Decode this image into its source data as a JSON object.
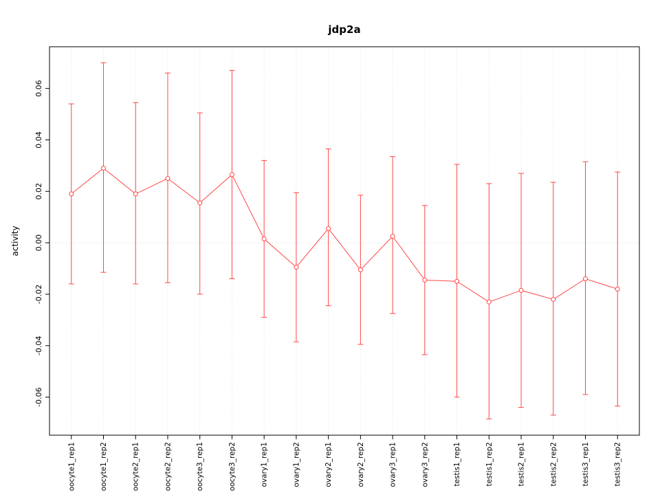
{
  "title": "jdp2a",
  "chart_data": {
    "type": "line",
    "title": "jdp2a",
    "xlabel": "",
    "ylabel": "activity",
    "legend": "none",
    "categories": [
      "oocyte1_rep1",
      "oocyte1_rep2",
      "oocyte2_rep1",
      "oocyte2_rep2",
      "oocyte3_rep1",
      "oocyte3_rep2",
      "ovary1_rep1",
      "ovary1_rep2",
      "ovary2_rep1",
      "ovary2_rep2",
      "ovary3_rep1",
      "ovary3_rep2",
      "testis1_rep1",
      "testis1_rep2",
      "testis2_rep1",
      "testis2_rep2",
      "testis3_rep1",
      "testis3_rep2"
    ],
    "series": [
      {
        "name": "activity",
        "marker": "open-circle",
        "values": [
          0.019,
          0.029,
          0.019,
          0.025,
          0.0155,
          0.0265,
          0.0015,
          -0.0095,
          0.0055,
          -0.0105,
          0.0025,
          -0.0145,
          -0.015,
          -0.023,
          -0.0185,
          -0.022,
          -0.014,
          -0.018
        ],
        "error_upper": [
          0.054,
          0.07,
          0.0545,
          0.066,
          0.0505,
          0.067,
          0.032,
          0.0195,
          0.0365,
          0.0185,
          0.0335,
          0.0145,
          0.0305,
          0.023,
          0.027,
          0.0235,
          0.0315,
          0.0275
        ],
        "error_lower": [
          -0.016,
          -0.0115,
          -0.016,
          -0.0155,
          -0.02,
          -0.014,
          -0.029,
          -0.0385,
          -0.0245,
          -0.0395,
          -0.0275,
          -0.0435,
          -0.06,
          -0.0685,
          -0.064,
          -0.067,
          -0.059,
          -0.0635
        ]
      }
    ],
    "yticks": [
      {
        "value": -0.06,
        "label": "-0.06"
      },
      {
        "value": -0.04,
        "label": "-0.04"
      },
      {
        "value": -0.02,
        "label": "-0.02"
      },
      {
        "value": 0.0,
        "label": "0.00"
      },
      {
        "value": 0.02,
        "label": "0.02"
      },
      {
        "value": 0.04,
        "label": "0.04"
      },
      {
        "value": 0.06,
        "label": "0.06"
      }
    ],
    "ylim": [
      -0.0748,
      0.0762
    ],
    "grid": {
      "vertical_dotted_at_each_category": true,
      "horizontal_dotted_zero_line": true
    },
    "colors": {
      "series": "#ff4545",
      "grid": "#dcdcdc",
      "zero_line": "#d8d8d8",
      "axis": "#000000",
      "text": "#000000",
      "background": "#ffffff"
    }
  }
}
